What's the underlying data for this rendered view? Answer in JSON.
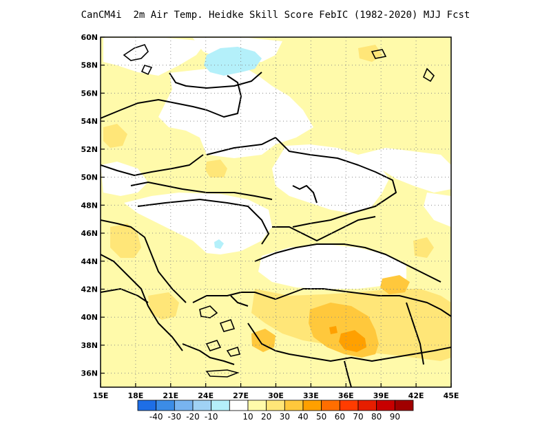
{
  "title": "CanCM4i  2m Air Temp. Heidke Skill Score FebIC (1982-2020) MJJ Fcst",
  "map": {
    "lon_range": [
      15,
      45
    ],
    "lat_range": [
      35,
      60
    ],
    "x_ticks": [
      {
        "value": 15,
        "label": "15E"
      },
      {
        "value": 18,
        "label": "18E"
      },
      {
        "value": 21,
        "label": "21E"
      },
      {
        "value": 24,
        "label": "24E"
      },
      {
        "value": 27,
        "label": "27E"
      },
      {
        "value": 30,
        "label": "30E"
      },
      {
        "value": 33,
        "label": "33E"
      },
      {
        "value": 36,
        "label": "36E"
      },
      {
        "value": 39,
        "label": "39E"
      },
      {
        "value": 42,
        "label": "42E"
      },
      {
        "value": 45,
        "label": "45E"
      }
    ],
    "y_ticks": [
      {
        "value": 60,
        "label": "60N"
      },
      {
        "value": 58,
        "label": "58N"
      },
      {
        "value": 56,
        "label": "56N"
      },
      {
        "value": 54,
        "label": "54N"
      },
      {
        "value": 52,
        "label": "52N"
      },
      {
        "value": 50,
        "label": "50N"
      },
      {
        "value": 48,
        "label": "48N"
      },
      {
        "value": 46,
        "label": "46N"
      },
      {
        "value": 44,
        "label": "44N"
      },
      {
        "value": 42,
        "label": "42N"
      },
      {
        "value": 40,
        "label": "40N"
      },
      {
        "value": 38,
        "label": "38N"
      },
      {
        "value": 36,
        "label": "36N"
      }
    ],
    "grid": "dotted",
    "field": "Heidke Skill Score (shaded, mostly 10-50)"
  },
  "colorbar": {
    "colors": [
      "#1e6ee6",
      "#3c8ce6",
      "#78b4f0",
      "#a0d2f5",
      "#b4f0fa",
      "#ffffff",
      "#fffaaa",
      "#ffe678",
      "#ffc83c",
      "#ffa000",
      "#ff6e00",
      "#ff3c00",
      "#e61e00",
      "#c80000",
      "#a00000"
    ],
    "labels": [
      "-40",
      "-30",
      "-20",
      "-10",
      "10",
      "20",
      "30",
      "40",
      "50",
      "60",
      "70",
      "80",
      "90"
    ]
  }
}
